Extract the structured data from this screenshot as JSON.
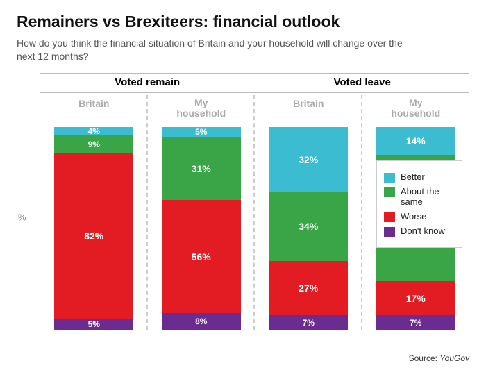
{
  "title": "Remainers vs Brexiteers: financial outlook",
  "subtitle": "How do you think the financial situation of Britain and your household will change over the next 12 months?",
  "yaxis_label": "%",
  "source_prefix": "Source: ",
  "source_name": "YouGov",
  "colors": {
    "better": "#3cbcd1",
    "same": "#3aa547",
    "worse": "#e31b23",
    "dontknow": "#6a2c91",
    "bg": "#ffffff"
  },
  "legend": [
    {
      "key": "better",
      "label": "Better"
    },
    {
      "key": "same",
      "label": "About the same"
    },
    {
      "key": "worse",
      "label": "Worse"
    },
    {
      "key": "dontknow",
      "label": "Don't know"
    }
  ],
  "groups": [
    {
      "label": "Voted remain"
    },
    {
      "label": "Voted leave"
    }
  ],
  "columns": [
    {
      "group": 0,
      "header": "Britain",
      "segments": [
        {
          "key": "dontknow",
          "value": 5,
          "label": "5%"
        },
        {
          "key": "worse",
          "value": 82,
          "label": "82%"
        },
        {
          "key": "same",
          "value": 9,
          "label": "9%"
        },
        {
          "key": "better",
          "value": 4,
          "label": "4%"
        }
      ]
    },
    {
      "group": 0,
      "header": "My household",
      "segments": [
        {
          "key": "dontknow",
          "value": 8,
          "label": "8%"
        },
        {
          "key": "worse",
          "value": 56,
          "label": "56%"
        },
        {
          "key": "same",
          "value": 31,
          "label": "31%"
        },
        {
          "key": "better",
          "value": 5,
          "label": "5%"
        }
      ]
    },
    {
      "group": 1,
      "header": "Britain",
      "segments": [
        {
          "key": "dontknow",
          "value": 7,
          "label": "7%"
        },
        {
          "key": "worse",
          "value": 27,
          "label": "27%"
        },
        {
          "key": "same",
          "value": 34,
          "label": "34%"
        },
        {
          "key": "better",
          "value": 32,
          "label": "32%"
        }
      ]
    },
    {
      "group": 1,
      "header": "My household",
      "segments": [
        {
          "key": "dontknow",
          "value": 7,
          "label": "7%"
        },
        {
          "key": "worse",
          "value": 17,
          "label": "17%"
        },
        {
          "key": "same",
          "value": 62,
          "label": "62%"
        },
        {
          "key": "better",
          "value": 14,
          "label": "14%"
        }
      ]
    }
  ]
}
